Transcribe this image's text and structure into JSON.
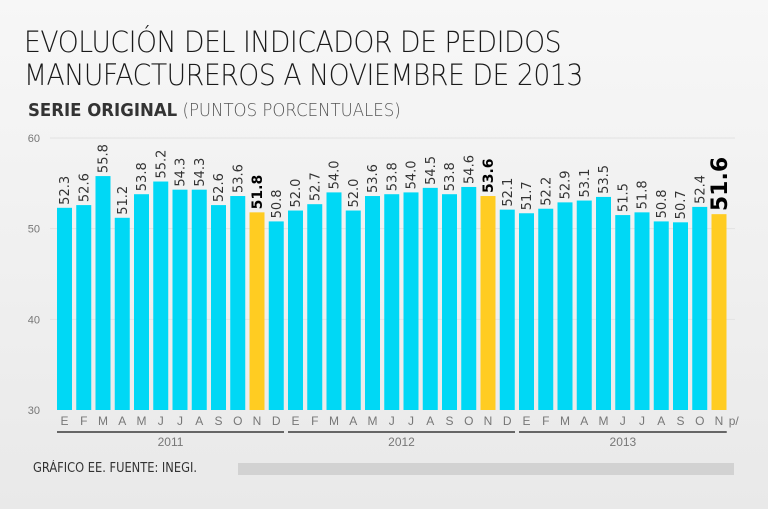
{
  "chart_data": {
    "type": "bar",
    "title": "EVOLUCIÓN DEL INDICADOR DE PEDIDOS MANUFACTUREROS A NOVIEMBRE DE 2013",
    "title_lines": [
      "EVOLUCIÓN DEL INDICADOR DE PEDIDOS",
      "MANUFACTUREROS A NOVIEMBRE DE 2013"
    ],
    "subtitle_bold": "SERIE ORIGINAL",
    "subtitle_normal": "(PUNTOS PORCENTUALES)",
    "ylim": [
      30,
      60
    ],
    "yticks": [
      30,
      40,
      50,
      60
    ],
    "grid": true,
    "colors": {
      "default": "#00d8f5",
      "highlight": "#ffcc22"
    },
    "categories": [
      "E",
      "F",
      "M",
      "A",
      "M",
      "J",
      "J",
      "A",
      "S",
      "O",
      "N",
      "D",
      "E",
      "F",
      "M",
      "A",
      "M",
      "J",
      "J",
      "A",
      "S",
      "O",
      "N",
      "D",
      "E",
      "F",
      "M",
      "A",
      "M",
      "J",
      "J",
      "A",
      "S",
      "O",
      "N"
    ],
    "years": [
      {
        "label": "2011",
        "count": 12
      },
      {
        "label": "2012",
        "count": 12
      },
      {
        "label": "2013",
        "count": 11
      }
    ],
    "values": [
      52.3,
      52.6,
      55.8,
      51.2,
      53.8,
      55.2,
      54.3,
      54.3,
      52.6,
      53.6,
      51.8,
      50.8,
      52.0,
      52.7,
      54.0,
      52.0,
      53.6,
      53.8,
      54.0,
      54.5,
      53.8,
      54.6,
      53.6,
      52.1,
      51.7,
      52.2,
      52.9,
      53.1,
      53.5,
      51.5,
      51.8,
      50.8,
      50.7,
      52.4,
      51.6
    ],
    "highlight_indices": [
      10,
      22,
      34
    ],
    "labels": [
      "52.3",
      "52.6",
      "55.8",
      "51.2",
      "53.8",
      "55.2",
      "54.3",
      "54.3",
      "52.6",
      "53.6",
      "51.8",
      "50.8",
      "52.0",
      "52.7",
      "54.0",
      "52.0",
      "53.6",
      "53.8",
      "54.0",
      "54.5",
      "53.8",
      "54.6",
      "53.6",
      "52.1",
      "51.7",
      "52.2",
      "52.9",
      "53.1",
      "53.5",
      "51.5",
      "51.8",
      "50.8",
      "50.7",
      "52.4",
      "51.6"
    ],
    "preliminary_mark": "p/"
  },
  "source": "GRÁFICO EE. FUENTE: INEGI."
}
